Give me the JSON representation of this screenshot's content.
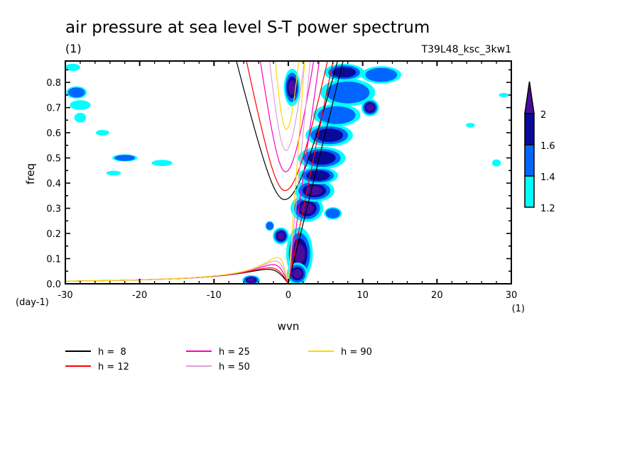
{
  "chart_data": {
    "type": "heatmap",
    "title": "air pressure at sea level S-T power spectrum",
    "subtitle_left": "(1)",
    "subtitle_right": "T39L48_ksc_3kw1",
    "xlabel": "wvn",
    "ylabel": "freq",
    "x_unit": "(1)",
    "y_unit": "(day-1)",
    "xlim": [
      -30,
      30
    ],
    "ylim": [
      0.0,
      0.885
    ],
    "x_ticks": [
      -30,
      -20,
      -10,
      0,
      10,
      20,
      30
    ],
    "x_tick_labels": [
      "-30",
      "-20",
      "-10",
      "0",
      "10",
      "20",
      "30"
    ],
    "y_ticks": [
      0.0,
      0.1,
      0.2,
      0.3,
      0.4,
      0.5,
      0.6,
      0.7,
      0.8
    ],
    "y_tick_labels": [
      "0.0",
      "0.1",
      "0.2",
      "0.3",
      "0.4",
      "0.5",
      "0.6",
      "0.7",
      "0.8"
    ],
    "colorbar": {
      "levels": [
        1.2,
        1.4,
        1.6,
        2
      ],
      "level_labels": [
        "1.2",
        "1.4",
        "1.6",
        "2"
      ],
      "colors": [
        "#00ffff",
        "#0066ff",
        "#0a0a9a",
        "#4b0c9e"
      ]
    },
    "dispersion_curves": [
      {
        "label": "h =  8",
        "h": 8,
        "color": "#000000"
      },
      {
        "label": "h = 12",
        "h": 12,
        "color": "#ff0000"
      },
      {
        "label": "h = 25",
        "h": 25,
        "color": "#ff00c0"
      },
      {
        "label": "h = 50",
        "h": 50,
        "color": "#dda0dd"
      },
      {
        "label": "h = 90",
        "h": 90,
        "color": "#ffd700"
      }
    ],
    "blobs": [
      {
        "x": 0.5,
        "y": 0.78,
        "rx": 0.9,
        "ry": 0.07,
        "level": 3
      },
      {
        "x": 1.5,
        "y": 0.12,
        "rx": 1.6,
        "ry": 0.1,
        "level": 3
      },
      {
        "x": 1.2,
        "y": 0.04,
        "rx": 1.2,
        "ry": 0.04,
        "level": 3
      },
      {
        "x": -1.0,
        "y": 0.19,
        "rx": 0.9,
        "ry": 0.03,
        "level": 3
      },
      {
        "x": -5.0,
        "y": 0.015,
        "rx": 1.0,
        "ry": 0.015,
        "level": 3
      },
      {
        "x": 2.5,
        "y": 0.3,
        "rx": 2.0,
        "ry": 0.05,
        "level": 3
      },
      {
        "x": 3.5,
        "y": 0.37,
        "rx": 2.5,
        "ry": 0.04,
        "level": 3
      },
      {
        "x": 4.0,
        "y": 0.43,
        "rx": 2.5,
        "ry": 0.03,
        "level": 2
      },
      {
        "x": 4.5,
        "y": 0.5,
        "rx": 3.0,
        "ry": 0.04,
        "level": 2
      },
      {
        "x": 5.5,
        "y": 0.59,
        "rx": 3.0,
        "ry": 0.04,
        "level": 2
      },
      {
        "x": 6.5,
        "y": 0.67,
        "rx": 3.0,
        "ry": 0.04,
        "level": 1
      },
      {
        "x": 8.0,
        "y": 0.76,
        "rx": 3.5,
        "ry": 0.05,
        "level": 1
      },
      {
        "x": 7.5,
        "y": 0.84,
        "rx": 2.5,
        "ry": 0.03,
        "level": 2
      },
      {
        "x": 12.5,
        "y": 0.83,
        "rx": 2.5,
        "ry": 0.03,
        "level": 1
      },
      {
        "x": 11.0,
        "y": 0.7,
        "rx": 1.0,
        "ry": 0.03,
        "level": 3
      },
      {
        "x": -2.5,
        "y": 0.23,
        "rx": 0.4,
        "ry": 0.015,
        "level": 1
      },
      {
        "x": 6.0,
        "y": 0.28,
        "rx": 1.0,
        "ry": 0.02,
        "level": 1
      },
      {
        "x": -29.0,
        "y": 0.86,
        "rx": 0.8,
        "ry": 0.01,
        "level": 0
      },
      {
        "x": -28.5,
        "y": 0.76,
        "rx": 1.2,
        "ry": 0.02,
        "level": 1
      },
      {
        "x": -28.0,
        "y": 0.71,
        "rx": 1.2,
        "ry": 0.015,
        "level": 0
      },
      {
        "x": -28.0,
        "y": 0.66,
        "rx": 0.6,
        "ry": 0.015,
        "level": 0
      },
      {
        "x": -22.0,
        "y": 0.5,
        "rx": 1.5,
        "ry": 0.01,
        "level": 1
      },
      {
        "x": -17.0,
        "y": 0.48,
        "rx": 1.2,
        "ry": 0.008,
        "level": 0
      },
      {
        "x": -25.0,
        "y": 0.6,
        "rx": 0.7,
        "ry": 0.007,
        "level": 0
      },
      {
        "x": -23.5,
        "y": 0.44,
        "rx": 0.8,
        "ry": 0.005,
        "level": 0
      },
      {
        "x": 28.0,
        "y": 0.48,
        "rx": 0.4,
        "ry": 0.01,
        "level": 0
      },
      {
        "x": 29.0,
        "y": 0.75,
        "rx": 0.5,
        "ry": 0.004,
        "level": 0
      },
      {
        "x": 24.5,
        "y": 0.63,
        "rx": 0.4,
        "ry": 0.005,
        "level": 0
      }
    ]
  },
  "legend": {
    "items": [
      {
        "label": "h =  8",
        "color": "#000000"
      },
      {
        "label": "h = 12",
        "color": "#ff0000"
      },
      {
        "label": "h = 25",
        "color": "#ff00c0"
      },
      {
        "label": "h = 50",
        "color": "#dda0dd"
      },
      {
        "label": "h = 90",
        "color": "#ffd700"
      }
    ]
  }
}
